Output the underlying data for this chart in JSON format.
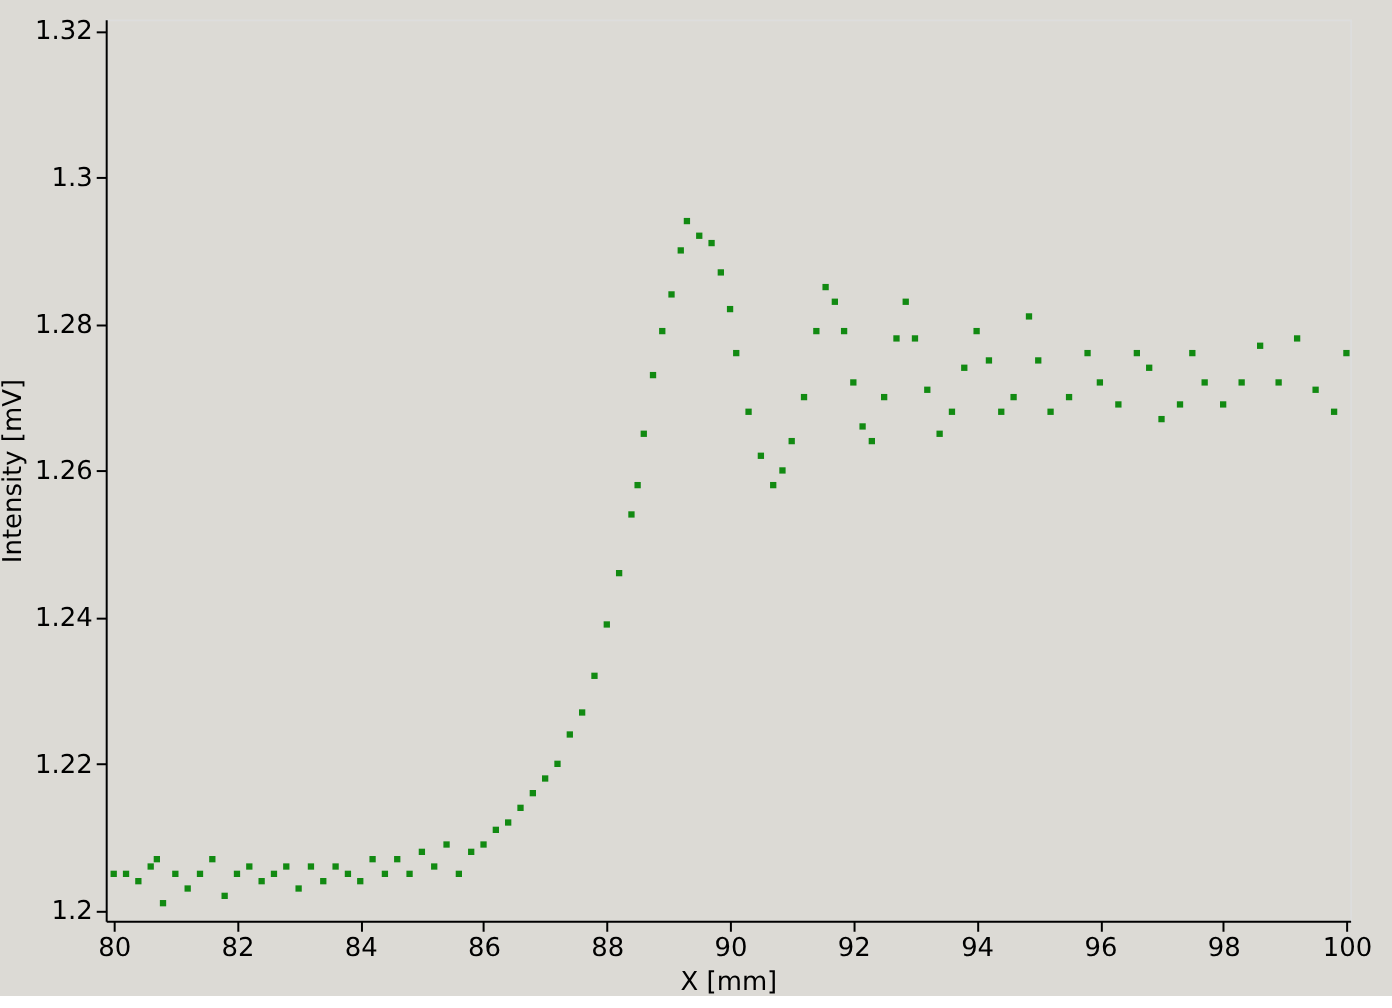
{
  "chart_data": {
    "type": "scatter",
    "xlabel": "X [mm]",
    "ylabel": "Intensity [mV]",
    "marker": "square",
    "grid": false,
    "legend": false,
    "xlim": [
      79.87,
      100.06
    ],
    "ylim": [
      1.1986,
      1.3215
    ],
    "xticks": [
      80,
      82,
      84,
      86,
      88,
      90,
      92,
      94,
      96,
      98,
      100
    ],
    "yticks": [
      1.2,
      1.22,
      1.24,
      1.26,
      1.28,
      1.3,
      1.32
    ],
    "series": [
      {
        "color": "#128a12",
        "x": [
          80.0,
          80.2,
          80.4,
          80.6,
          80.7,
          80.8,
          81.0,
          81.2,
          81.4,
          81.6,
          81.8,
          82.0,
          82.2,
          82.4,
          82.6,
          82.8,
          83.0,
          83.2,
          83.4,
          83.6,
          83.8,
          84.0,
          84.2,
          84.4,
          84.6,
          84.8,
          85.0,
          85.2,
          85.4,
          85.6,
          85.8,
          86.0,
          86.2,
          86.4,
          86.6,
          86.8,
          87.0,
          87.2,
          87.4,
          87.6,
          87.8,
          88.0,
          88.2,
          88.4,
          88.5,
          88.6,
          88.75,
          88.9,
          89.05,
          89.2,
          89.3,
          89.5,
          89.7,
          89.85,
          90.0,
          90.1,
          90.3,
          90.5,
          90.7,
          90.85,
          91.0,
          91.2,
          91.4,
          91.55,
          91.7,
          91.85,
          92.0,
          92.15,
          92.3,
          92.5,
          92.7,
          92.85,
          93.0,
          93.2,
          93.4,
          93.6,
          93.8,
          94.0,
          94.2,
          94.4,
          94.6,
          94.85,
          95.0,
          95.2,
          95.5,
          95.8,
          96.0,
          96.3,
          96.6,
          96.8,
          97.0,
          97.3,
          97.5,
          97.7,
          98.0,
          98.3,
          98.6,
          98.9,
          99.2,
          99.5,
          99.8,
          100.0
        ],
        "values": [
          1.205,
          1.205,
          1.204,
          1.206,
          1.207,
          1.201,
          1.205,
          1.203,
          1.205,
          1.207,
          1.202,
          1.205,
          1.206,
          1.204,
          1.205,
          1.206,
          1.203,
          1.206,
          1.204,
          1.206,
          1.205,
          1.204,
          1.207,
          1.205,
          1.207,
          1.205,
          1.208,
          1.206,
          1.209,
          1.205,
          1.208,
          1.209,
          1.211,
          1.212,
          1.214,
          1.216,
          1.218,
          1.22,
          1.224,
          1.227,
          1.232,
          1.239,
          1.246,
          1.254,
          1.258,
          1.265,
          1.273,
          1.279,
          1.284,
          1.29,
          1.294,
          1.292,
          1.291,
          1.287,
          1.282,
          1.276,
          1.268,
          1.262,
          1.258,
          1.26,
          1.264,
          1.27,
          1.279,
          1.285,
          1.283,
          1.279,
          1.272,
          1.266,
          1.264,
          1.27,
          1.278,
          1.283,
          1.278,
          1.271,
          1.265,
          1.268,
          1.274,
          1.279,
          1.275,
          1.268,
          1.27,
          1.281,
          1.275,
          1.268,
          1.27,
          1.276,
          1.272,
          1.269,
          1.276,
          1.274,
          1.267,
          1.269,
          1.276,
          1.272,
          1.269,
          1.272,
          1.277,
          1.272,
          1.278,
          1.271,
          1.268,
          1.276
        ]
      }
    ]
  }
}
